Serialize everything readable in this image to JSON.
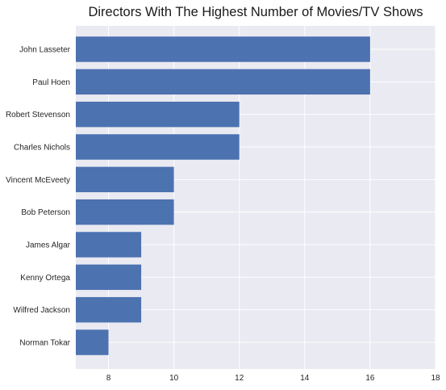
{
  "chart_data": {
    "type": "bar",
    "orientation": "horizontal",
    "title": "Directors With The Highest Number of Movies/TV Shows",
    "xlabel": "",
    "ylabel": "",
    "categories": [
      "John Lasseter",
      "Paul Hoen",
      "Robert Stevenson",
      "Charles Nichols",
      "Vincent McEveety",
      "Bob Peterson",
      "James Algar",
      "Kenny Ortega",
      "Wilfred Jackson",
      "Norman Tokar"
    ],
    "values": [
      16,
      16,
      12,
      12,
      10,
      10,
      9,
      9,
      9,
      8
    ],
    "xlim": [
      7,
      18
    ],
    "xticks": [
      "8",
      "10",
      "12",
      "14",
      "16",
      "18"
    ],
    "grid": true,
    "legend": "none",
    "colors": {
      "bar": "#4c72b0",
      "plot_background": "#eaeaf2",
      "grid": "#ffffff"
    }
  }
}
